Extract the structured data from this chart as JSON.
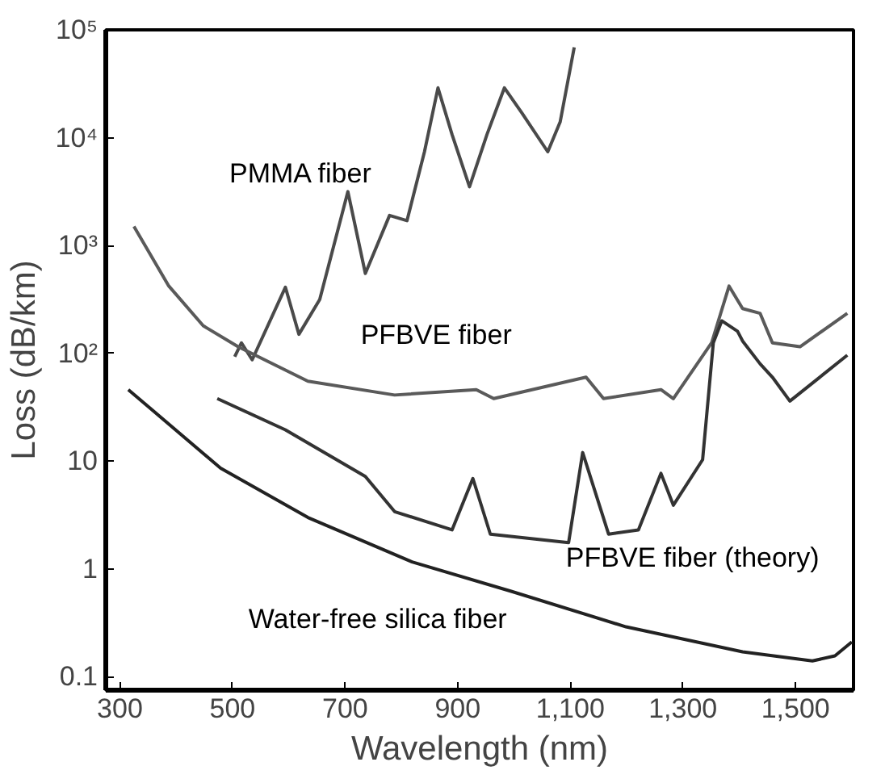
{
  "chart_data": {
    "type": "line",
    "xlabel": "Wavelength (nm)",
    "ylabel": "Loss (dB/km)",
    "log": "y",
    "grid": false,
    "marker": "none",
    "line_style": "solid",
    "xlim": [
      275,
      1603
    ],
    "ylim": [
      0.075,
      100000
    ],
    "xticks": [
      300,
      500,
      700,
      {
        "value": 900,
        "label": "900"
      },
      {
        "value": 1100,
        "label": "1,100"
      },
      {
        "value": 1300,
        "label": "1,300"
      },
      {
        "value": 1500,
        "label": "1,500"
      }
    ],
    "yticks": [
      0.1,
      1,
      10,
      {
        "value": 100,
        "label": "10²"
      },
      {
        "value": 1000,
        "label": "10³"
      },
      {
        "value": 10000,
        "label": "10⁴"
      },
      {
        "value": 100000,
        "label": "10⁵"
      }
    ],
    "series": [
      {
        "name": "PMMA fiber",
        "color": "#4a4a4a",
        "x": [
          504,
          516,
          535,
          594,
          618,
          655,
          705,
          736,
          779,
          810,
          841,
          865,
          890,
          921,
          952,
          983,
          1014,
          1060,
          1082,
          1107
        ],
        "values": [
          93,
          125,
          87,
          410,
          150,
          316,
          3160,
          550,
          1900,
          1700,
          7400,
          29000,
          10700,
          3500,
          10700,
          29000,
          17000,
          7400,
          14000,
          69000
        ]
      },
      {
        "name": "PFBVE fiber",
        "color": "#5a5a5a",
        "x": [
          325,
          387,
          448,
          510,
          634,
          788,
          933,
          964,
          1128,
          1159,
          1261,
          1283,
          1351,
          1382,
          1406,
          1437,
          1459,
          1508,
          1592
        ],
        "values": [
          1500,
          420,
          180,
          115,
          55,
          41,
          46,
          38,
          60,
          38,
          46,
          38,
          125,
          420,
          260,
          235,
          125,
          115,
          235
        ]
      },
      {
        "name": "PFBVE fiber (theory)",
        "color": "#333333",
        "x": [
          473,
          594,
          736,
          788,
          890,
          927,
          958,
          1097,
          1122,
          1168,
          1221,
          1261,
          1283,
          1335,
          1354,
          1369,
          1397,
          1406,
          1437,
          1459,
          1490,
          1592
        ],
        "values": [
          38,
          19.5,
          7.2,
          3.4,
          2.3,
          6.9,
          2.1,
          1.75,
          12,
          2.1,
          2.3,
          7.7,
          3.9,
          10.3,
          125,
          200,
          160,
          130,
          80,
          60,
          36,
          96
        ]
      },
      {
        "name": "Water-free silica fiber",
        "color": "#222222",
        "x": [
          315,
          479,
          634,
          819,
          995,
          1199,
          1406,
          1530,
          1570,
          1600
        ],
        "values": [
          46,
          8.6,
          3.0,
          1.16,
          0.62,
          0.29,
          0.17,
          0.14,
          0.156,
          0.21
        ]
      }
    ]
  }
}
